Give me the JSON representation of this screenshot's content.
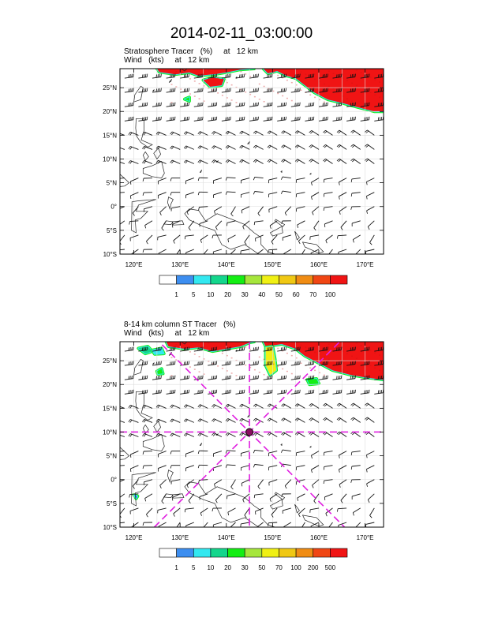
{
  "title": "2014-02-11_03:00:00",
  "panels": [
    {
      "subtitle_line1": "Stratosphere Tracer   (%)     at   12 km",
      "subtitle_line2": "Wind   (kts)     at   12 km",
      "lon_ticks": [
        "120°E",
        "130°E",
        "140°E",
        "150°E",
        "160°E",
        "170°E"
      ],
      "lat_ticks": [
        "25°N",
        "20°N",
        "15°N",
        "10°N",
        "5°N",
        "0°",
        "5°S",
        "10°S"
      ],
      "colorbar_labels": [
        "1",
        "5",
        "10",
        "20",
        "30",
        "40",
        "50",
        "60",
        "70",
        "100"
      ],
      "colorbar_colors": [
        "#ffffff",
        "#3d8ef0",
        "#33e8f0",
        "#14d68c",
        "#14ee14",
        "#a6e63c",
        "#f0f014",
        "#f0c814",
        "#f08c14",
        "#f04614",
        "#f01414"
      ]
    },
    {
      "subtitle_line1": "8-14 km column ST Tracer   (%)",
      "subtitle_line2": "Wind   (kts)     at   12 km",
      "lon_ticks": [
        "120°E",
        "130°E",
        "140°E",
        "150°E",
        "160°E",
        "170°E"
      ],
      "lat_ticks": [
        "25°N",
        "20°N",
        "15°N",
        "10°N",
        "5°N",
        "0°",
        "5°S",
        "10°S"
      ],
      "colorbar_labels": [
        "1",
        "5",
        "10",
        "20",
        "30",
        "50",
        "70",
        "100",
        "200",
        "500"
      ],
      "colorbar_colors": [
        "#ffffff",
        "#3d8ef0",
        "#33e8f0",
        "#14d68c",
        "#14ee14",
        "#a6e63c",
        "#f0f014",
        "#f0c814",
        "#f08c14",
        "#f04614",
        "#f01414"
      ]
    }
  ],
  "map_extent": {
    "lon": [
      117,
      174
    ],
    "lat": [
      -10,
      29
    ]
  },
  "storm_center": {
    "lon": 145,
    "lat": 10
  }
}
